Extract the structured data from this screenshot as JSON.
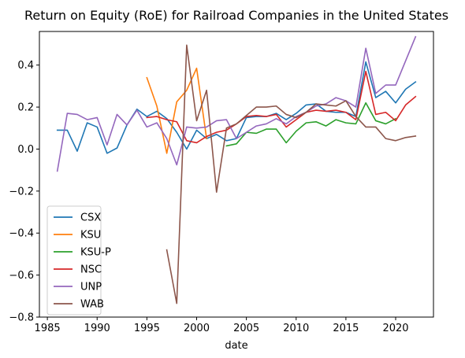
{
  "chart_data": {
    "type": "line",
    "title": "Return on Equity (RoE) for Railroad Companies in the United States",
    "xlabel": "date",
    "ylabel": "",
    "xlim": [
      1984.2,
      2023.8
    ],
    "ylim": [
      -0.8,
      0.56
    ],
    "x_ticks": [
      1985,
      1990,
      1995,
      2000,
      2005,
      2010,
      2015,
      2020
    ],
    "x_tick_labels": [
      "1985",
      "1990",
      "1995",
      "2000",
      "2005",
      "2010",
      "2015",
      "2020"
    ],
    "y_ticks": [
      -0.8,
      -0.6,
      -0.4,
      -0.2,
      0.0,
      0.2,
      0.4
    ],
    "y_tick_labels": [
      "−0.8",
      "−0.6",
      "−0.4",
      "−0.2",
      "0.0",
      "0.2",
      "0.4"
    ],
    "grid": false,
    "legend_position": "lower-left",
    "series": [
      {
        "name": "CSX",
        "color": "#1f77b4",
        "x": [
          1986,
          1987,
          1988,
          1989,
          1990,
          1991,
          1992,
          1993,
          1994,
          1995,
          1996,
          1997,
          1998,
          1999,
          2000,
          2001,
          2002,
          2003,
          2004,
          2005,
          2006,
          2007,
          2008,
          2009,
          2010,
          2011,
          2012,
          2013,
          2014,
          2015,
          2016,
          2017,
          2018,
          2019,
          2020,
          2021,
          2022
        ],
        "y": [
          0.09,
          0.09,
          -0.01,
          0.125,
          0.105,
          -0.02,
          0.005,
          0.115,
          0.19,
          0.155,
          0.18,
          0.145,
          0.08,
          0.0,
          0.09,
          0.05,
          0.07,
          0.04,
          0.05,
          0.15,
          0.155,
          0.155,
          0.17,
          0.14,
          0.17,
          0.21,
          0.215,
          0.18,
          0.175,
          0.175,
          0.155,
          0.415,
          0.245,
          0.275,
          0.22,
          0.285,
          0.32
        ]
      },
      {
        "name": "KSU",
        "color": "#ff7f0e",
        "x": [
          1995,
          1996,
          1997,
          1998,
          1999,
          2000,
          2001
        ],
        "y": [
          0.34,
          0.205,
          -0.02,
          0.225,
          0.28,
          0.385,
          0.05
        ]
      },
      {
        "name": "KSU-P",
        "color": "#2ca02c",
        "x": [
          2003,
          2004,
          2005,
          2006,
          2007,
          2008,
          2009,
          2010,
          2011,
          2012,
          2013,
          2014,
          2015,
          2016,
          2017,
          2018,
          2019,
          2020
        ],
        "y": [
          0.015,
          0.025,
          0.08,
          0.075,
          0.095,
          0.095,
          0.03,
          0.085,
          0.125,
          0.13,
          0.11,
          0.14,
          0.125,
          0.12,
          0.22,
          0.135,
          0.12,
          0.145
        ]
      },
      {
        "name": "NSC",
        "color": "#d62728",
        "x": [
          1995,
          1996,
          1997,
          1998,
          1999,
          2000,
          2001,
          2002,
          2003,
          2004,
          2005,
          2006,
          2007,
          2008,
          2009,
          2010,
          2011,
          2012,
          2013,
          2014,
          2015,
          2016,
          2017,
          2018,
          2019,
          2020,
          2021,
          2022
        ],
        "y": [
          0.15,
          0.155,
          0.14,
          0.13,
          0.04,
          0.03,
          0.06,
          0.08,
          0.09,
          0.12,
          0.155,
          0.16,
          0.155,
          0.165,
          0.105,
          0.14,
          0.175,
          0.185,
          0.18,
          0.185,
          0.175,
          0.14,
          0.37,
          0.165,
          0.175,
          0.135,
          0.21,
          0.25
        ]
      },
      {
        "name": "UNP",
        "color": "#9467bd",
        "x": [
          1986,
          1987,
          1988,
          1989,
          1990,
          1991,
          1992,
          1993,
          1994,
          1995,
          1996,
          1997,
          1998,
          1999,
          2000,
          2001,
          2002,
          2003,
          2004,
          2005,
          2006,
          2007,
          2008,
          2009,
          2010,
          2011,
          2012,
          2013,
          2014,
          2015,
          2016,
          2017,
          2018,
          2019,
          2020,
          2022
        ],
        "y": [
          -0.105,
          0.17,
          0.165,
          0.14,
          0.15,
          0.02,
          0.165,
          0.115,
          0.185,
          0.105,
          0.125,
          0.05,
          -0.075,
          0.105,
          0.1,
          0.105,
          0.135,
          0.14,
          0.05,
          0.08,
          0.11,
          0.12,
          0.145,
          0.12,
          0.155,
          0.175,
          0.205,
          0.215,
          0.245,
          0.23,
          0.2,
          0.48,
          0.265,
          0.305,
          0.305,
          0.535
        ]
      },
      {
        "name": "WAB",
        "color": "#8c564b",
        "x": [
          1997,
          1998,
          1999,
          2000,
          2001,
          2002,
          2003,
          2004,
          2005,
          2006,
          2007,
          2008,
          2009,
          2010,
          2011,
          2012,
          2013,
          2014,
          2015,
          2016,
          2017,
          2018,
          2019,
          2020,
          2021,
          2022
        ],
        "y": [
          -0.48,
          -0.735,
          0.495,
          0.135,
          0.28,
          -0.205,
          0.1,
          0.12,
          0.16,
          0.2,
          0.2,
          0.205,
          0.165,
          0.15,
          0.175,
          0.215,
          0.21,
          0.205,
          0.23,
          0.155,
          0.105,
          0.105,
          0.05,
          0.04,
          0.055,
          0.062
        ]
      }
    ]
  }
}
